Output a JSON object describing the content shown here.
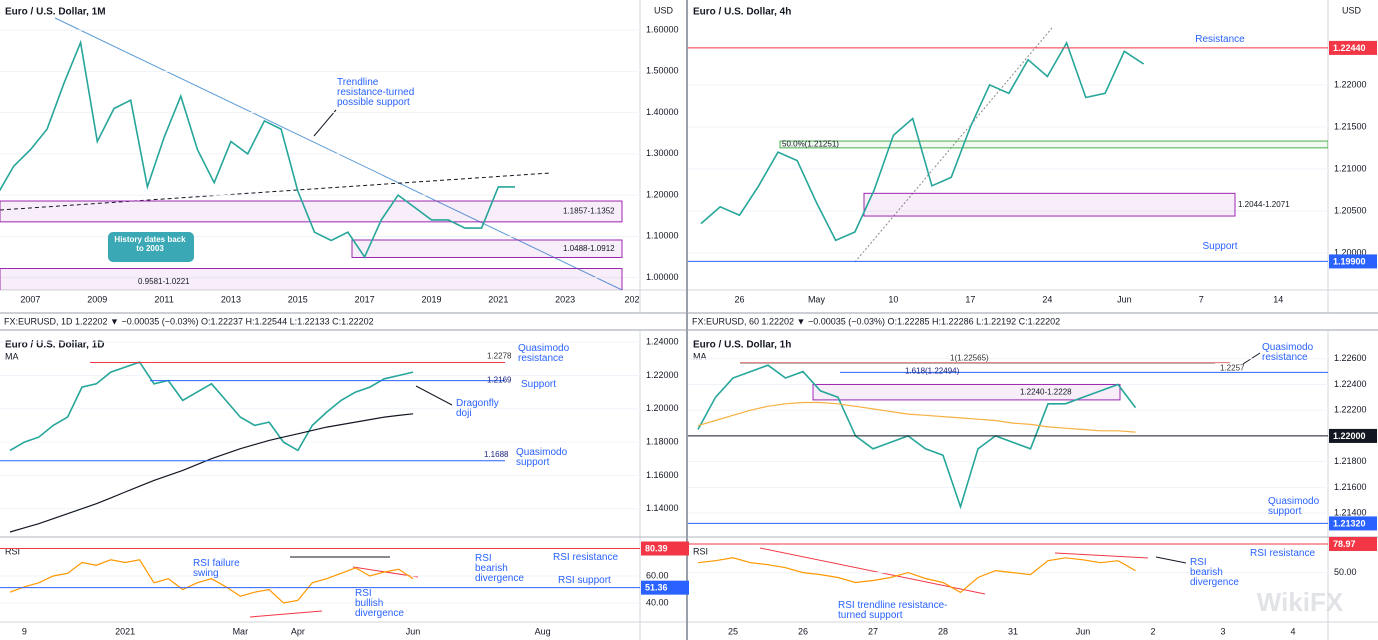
{
  "chart_data": [
    {
      "type": "line",
      "title": "Euro / U.S. Dollar, 1M",
      "unit": "USD",
      "grid": true,
      "annotation_color": "#2962ff",
      "categories": [
        null,
        null,
        "2007",
        null,
        null,
        null,
        "2009",
        null,
        null,
        null,
        "2011",
        null,
        null,
        null,
        "2013",
        null,
        null,
        null,
        "2015",
        null,
        null,
        null,
        "2017",
        null,
        null,
        null,
        "2019",
        null,
        null,
        null,
        "2021",
        null,
        null,
        null,
        "2023",
        null,
        null,
        null,
        "202"
      ],
      "series": [
        {
          "color": "#26a69a",
          "values": [
            1.2,
            1.27,
            1.31,
            1.36,
            1.47,
            1.57,
            1.33,
            1.41,
            1.43,
            1.22,
            1.34,
            1.44,
            1.31,
            1.23,
            1.33,
            1.3,
            1.38,
            1.36,
            1.21,
            1.11,
            1.09,
            1.11,
            1.05,
            1.14,
            1.2,
            1.17,
            1.14,
            1.14,
            1.12,
            1.12,
            1.22,
            1.22,
            null,
            null,
            null,
            null,
            null,
            null,
            null
          ]
        }
      ],
      "ylim": [
        0.97,
        1.673
      ],
      "yticks": [
        {
          "value": 1.0,
          "label": "1.00000"
        },
        {
          "value": 1.1,
          "label": "1.10000"
        },
        {
          "value": 1.2,
          "label": "1.20000"
        },
        {
          "value": 1.3,
          "label": "1.30000"
        },
        {
          "value": 1.4,
          "label": "1.40000"
        },
        {
          "value": 1.5,
          "label": "1.50000"
        },
        {
          "value": 1.6,
          "label": "1.60000"
        }
      ],
      "zones": [
        {
          "low": 1.1352,
          "high": 1.1857,
          "label": "1.1857-1.1352",
          "color": "#9c27b0"
        },
        {
          "low": 1.0488,
          "high": 1.0912,
          "label": "1.0488-1.0912",
          "color": "#9c27b0"
        },
        {
          "low": 0.9581,
          "high": 1.0221,
          "label": "0.9581-1.0221",
          "color": "#9c27b0"
        }
      ],
      "annotations": [
        {
          "lines": [
            "Trendline",
            "resistance-turned",
            "possible support"
          ]
        },
        {
          "lines": [
            "History dates back",
            "to 2003"
          ]
        }
      ]
    },
    {
      "type": "line",
      "title": "Euro / U.S. Dollar, 4h",
      "unit": "USD",
      "grid": true,
      "annotation_color": "#2962ff",
      "categories": [
        null,
        null,
        "26",
        null,
        null,
        null,
        "May",
        null,
        null,
        null,
        "10",
        null,
        null,
        null,
        "17",
        null,
        null,
        null,
        "24",
        null,
        null,
        null,
        "Jun",
        null,
        null,
        null,
        "7",
        null,
        null,
        null,
        "14",
        null,
        null,
        null
      ],
      "series": [
        {
          "color": "#26a69a",
          "values": [
            1.2035,
            1.2055,
            1.2045,
            1.208,
            1.212,
            1.211,
            1.206,
            1.2015,
            1.2025,
            1.2075,
            1.214,
            1.216,
            1.208,
            1.209,
            1.215,
            1.22,
            1.219,
            1.223,
            1.221,
            1.225,
            1.2185,
            1.219,
            1.224,
            1.2225,
            null,
            null,
            null,
            null,
            null,
            null,
            null,
            null,
            null,
            null
          ]
        }
      ],
      "ylim": [
        1.1956,
        1.2301
      ],
      "yticks": [
        {
          "value": 1.2,
          "label": "1.20000"
        },
        {
          "value": 1.205,
          "label": "1.20500"
        },
        {
          "value": 1.21,
          "label": "1.21000"
        },
        {
          "value": 1.215,
          "label": "1.21500"
        },
        {
          "value": 1.22,
          "label": "1.22000"
        }
      ],
      "levels": [
        {
          "value": 1.2244,
          "label": "1.22440",
          "color": "#f23645",
          "boxed": true
        },
        {
          "value": 1.199,
          "label": "1.19900",
          "color": "#2962ff",
          "boxed": true
        }
      ],
      "zones": [
        {
          "low": 1.2044,
          "high": 1.2071,
          "label": "1.2044-1.2071",
          "color": "#9c27b0"
        },
        {
          "low": 1.21251,
          "high": 1.21332,
          "label": "50.0%(1.21251)",
          "color": "#4caf50"
        }
      ],
      "annotations": [
        {
          "lines": [
            "Resistance"
          ]
        },
        {
          "lines": [
            "Support"
          ]
        }
      ]
    },
    {
      "type": "line",
      "title": "Euro / U.S. Dollar, 1D",
      "grid": true,
      "annotation_color": "#2962ff",
      "info": "FX:EURUSD, 1D 1.22202 ▼ −0.00035 (−0.03%) O:1.22237 H:1.22544 L:1.22133 C:1.22202",
      "categories": [
        null,
        "9",
        null,
        null,
        null,
        null,
        null,
        null,
        "2021",
        null,
        null,
        null,
        null,
        null,
        null,
        null,
        "Mar",
        null,
        null,
        null,
        "Apr",
        null,
        null,
        null,
        null,
        null,
        null,
        null,
        "Jun",
        null,
        null,
        null,
        null,
        null,
        null,
        null,
        null,
        "Aug",
        null,
        null,
        null,
        null,
        null,
        null
      ],
      "series": [
        {
          "color": "#26a69a",
          "values": [
            1.175,
            1.18,
            1.183,
            1.19,
            1.195,
            1.213,
            1.215,
            1.222,
            1.225,
            1.228,
            1.215,
            1.217,
            1.205,
            1.21,
            1.215,
            1.205,
            1.195,
            1.19,
            1.192,
            1.18,
            1.175,
            1.19,
            1.198,
            1.205,
            1.21,
            1.213,
            1.218,
            1.22,
            1.222,
            null,
            null,
            null,
            null,
            null,
            null,
            null,
            null,
            null,
            null,
            null,
            null,
            null,
            null,
            null
          ]
        },
        {
          "name": "MA",
          "color": "#131722",
          "values": [
            1.126,
            1.1285,
            1.131,
            1.134,
            1.137,
            1.14,
            1.143,
            1.1465,
            1.15,
            1.1535,
            1.157,
            1.16,
            1.163,
            1.1665,
            1.17,
            1.173,
            1.176,
            1.1785,
            1.181,
            1.183,
            1.185,
            1.187,
            1.189,
            1.1905,
            1.192,
            1.1935,
            1.195,
            1.196,
            1.197,
            null,
            null,
            null,
            null,
            null,
            null,
            null,
            null,
            null,
            null,
            null,
            null,
            null,
            null,
            null
          ]
        }
      ],
      "ylim": [
        1.1242,
        1.2455
      ],
      "yticks": [
        {
          "value": 1.14,
          "label": "1.14000"
        },
        {
          "value": 1.16,
          "label": "1.16000"
        },
        {
          "value": 1.18,
          "label": "1.18000"
        },
        {
          "value": 1.2,
          "label": "1.20000"
        },
        {
          "value": 1.22,
          "label": "1.22000"
        },
        {
          "value": 1.24,
          "label": "1.24000"
        }
      ],
      "levels": [
        {
          "value": 1.2278,
          "label": "1.2278",
          "color": "#f23645"
        },
        {
          "value": 1.2169,
          "label": "1.2169",
          "color": "#2962ff"
        },
        {
          "value": 1.1688,
          "label": "1.1688",
          "color": "#2962ff"
        }
      ],
      "annotations": [
        {
          "lines": [
            "Quasimodo",
            "resistance"
          ]
        },
        {
          "lines": [
            "Support"
          ]
        },
        {
          "lines": [
            "Dragonfly",
            "doji"
          ]
        },
        {
          "lines": [
            "Quasimodo",
            "support"
          ]
        }
      ],
      "rsi": {
        "title": "RSI",
        "color": "#ff9800",
        "ylim": [
          25.9,
          86.7
        ],
        "yticks": [
          {
            "value": 60,
            "label": "60.00"
          },
          {
            "value": 40,
            "label": "40.00"
          }
        ],
        "values": [
          48,
          52,
          55,
          60,
          62,
          70,
          68,
          72,
          70,
          72,
          55,
          58,
          50,
          55,
          58,
          52,
          45,
          48,
          50,
          40,
          42,
          55,
          58,
          62,
          66,
          60,
          63,
          65,
          58,
          null,
          null,
          null,
          null,
          null,
          null,
          null,
          null,
          null,
          null,
          null,
          null,
          null,
          null,
          null
        ],
        "levels": [
          {
            "value": 80.39,
            "label": "80.39",
            "color": "#f23645",
            "boxed": true
          },
          {
            "value": 51.36,
            "label": "51.36",
            "color": "#2962ff",
            "boxed": true
          }
        ],
        "annotations": [
          {
            "lines": [
              "RSI resistance"
            ]
          },
          {
            "lines": [
              "RSI support"
            ]
          },
          {
            "lines": [
              "RSI failure",
              "swing"
            ]
          },
          {
            "lines": [
              "RSI",
              "bearish",
              "divergence"
            ]
          },
          {
            "lines": [
              "RSI",
              "bullish",
              "divergence"
            ]
          }
        ]
      }
    },
    {
      "type": "line",
      "title": "Euro / U.S. Dollar, 1h",
      "grid": true,
      "annotation_color": "#2962ff",
      "info": "FX:EURUSD, 60 1.22202 ▼ −0.00035 (−0.03%) O:1.22285 H:1.22286 L:1.22192 C:1.22202",
      "categories": [
        null,
        null,
        "25",
        null,
        null,
        null,
        "26",
        null,
        null,
        null,
        "27",
        null,
        null,
        null,
        "28",
        null,
        null,
        null,
        "31",
        null,
        null,
        null,
        "Jun",
        null,
        null,
        null,
        "2",
        null,
        null,
        null,
        "3",
        null,
        null,
        null,
        "4",
        null,
        null
      ],
      "series": [
        {
          "color": "#26a69a",
          "values": [
            1.2205,
            1.223,
            1.2245,
            1.225,
            1.2255,
            1.2245,
            1.225,
            1.2235,
            1.223,
            1.22,
            1.219,
            1.2195,
            1.22,
            1.219,
            1.2185,
            1.2145,
            1.219,
            1.22,
            1.2195,
            1.219,
            1.2225,
            1.2225,
            1.223,
            1.2235,
            1.224,
            1.2222,
            null,
            null,
            null,
            null,
            null,
            null,
            null,
            null,
            null,
            null,
            null
          ]
        },
        {
          "name": "MA",
          "color": "#f5b041",
          "values": [
            1.2208,
            1.2212,
            1.2216,
            1.222,
            1.2223,
            1.2225,
            1.2226,
            1.2226,
            1.2225,
            1.2223,
            1.2221,
            1.2219,
            1.2217,
            1.2216,
            1.2215,
            1.2214,
            1.2213,
            1.2212,
            1.221,
            1.2209,
            1.2207,
            1.2206,
            1.2205,
            1.2204,
            1.2204,
            1.2203,
            null,
            null,
            null,
            null,
            null,
            null,
            null,
            null,
            null,
            null,
            null
          ]
        }
      ],
      "ylim": [
        1.2123,
        1.228
      ],
      "yticks": [
        {
          "value": 1.214,
          "label": "1.21400"
        },
        {
          "value": 1.216,
          "label": "1.21600"
        },
        {
          "value": 1.218,
          "label": "1.21800"
        },
        {
          "value": 1.222,
          "label": "1.22200"
        },
        {
          "value": 1.224,
          "label": "1.22400"
        },
        {
          "value": 1.226,
          "label": "1.22600"
        }
      ],
      "levels": [
        {
          "value": 1.22565,
          "label": "1(1.22565)",
          "color": "#9e9e9e"
        },
        {
          "value": 1.22494,
          "label": "1.618(1.22494)",
          "color": "#2962ff"
        },
        {
          "value": 1.2257,
          "label": "1.2257",
          "color": "#e57373"
        },
        {
          "value": 1.22,
          "label": "1.22000",
          "color": "#131722",
          "boxed": true
        },
        {
          "value": 1.2132,
          "label": "1.21320",
          "color": "#2962ff",
          "boxed": true
        }
      ],
      "zones": [
        {
          "low": 1.2228,
          "high": 1.224,
          "label": "1.2240-1.2228",
          "color": "#9c27b0"
        }
      ],
      "annotations": [
        {
          "lines": [
            "Quasimodo",
            "resistance"
          ]
        },
        {
          "lines": [
            "Quasimodo",
            "support"
          ]
        }
      ],
      "rsi": {
        "title": "RSI",
        "color": "#ff9800",
        "ylim": [
          0,
          83
        ],
        "yticks": [
          {
            "value": 50,
            "label": "50.00"
          }
        ],
        "values": [
          60,
          62,
          65,
          60,
          58,
          55,
          50,
          48,
          45,
          40,
          42,
          45,
          50,
          44,
          40,
          30,
          45,
          52,
          50,
          48,
          62,
          65,
          63,
          60,
          62,
          52,
          null,
          null,
          null,
          null,
          null,
          null,
          null,
          null,
          null,
          null,
          null
        ],
        "levels": [
          {
            "value": 78.97,
            "label": "78.97",
            "color": "#f23645",
            "boxed": true
          }
        ],
        "annotations": [
          {
            "lines": [
              "RSI resistance"
            ]
          },
          {
            "lines": [
              "RSI trendline resistance-",
              "turned support"
            ]
          },
          {
            "lines": [
              "RSI",
              "bearish",
              "divergence"
            ]
          }
        ]
      }
    }
  ],
  "watermark": "WikiFX"
}
